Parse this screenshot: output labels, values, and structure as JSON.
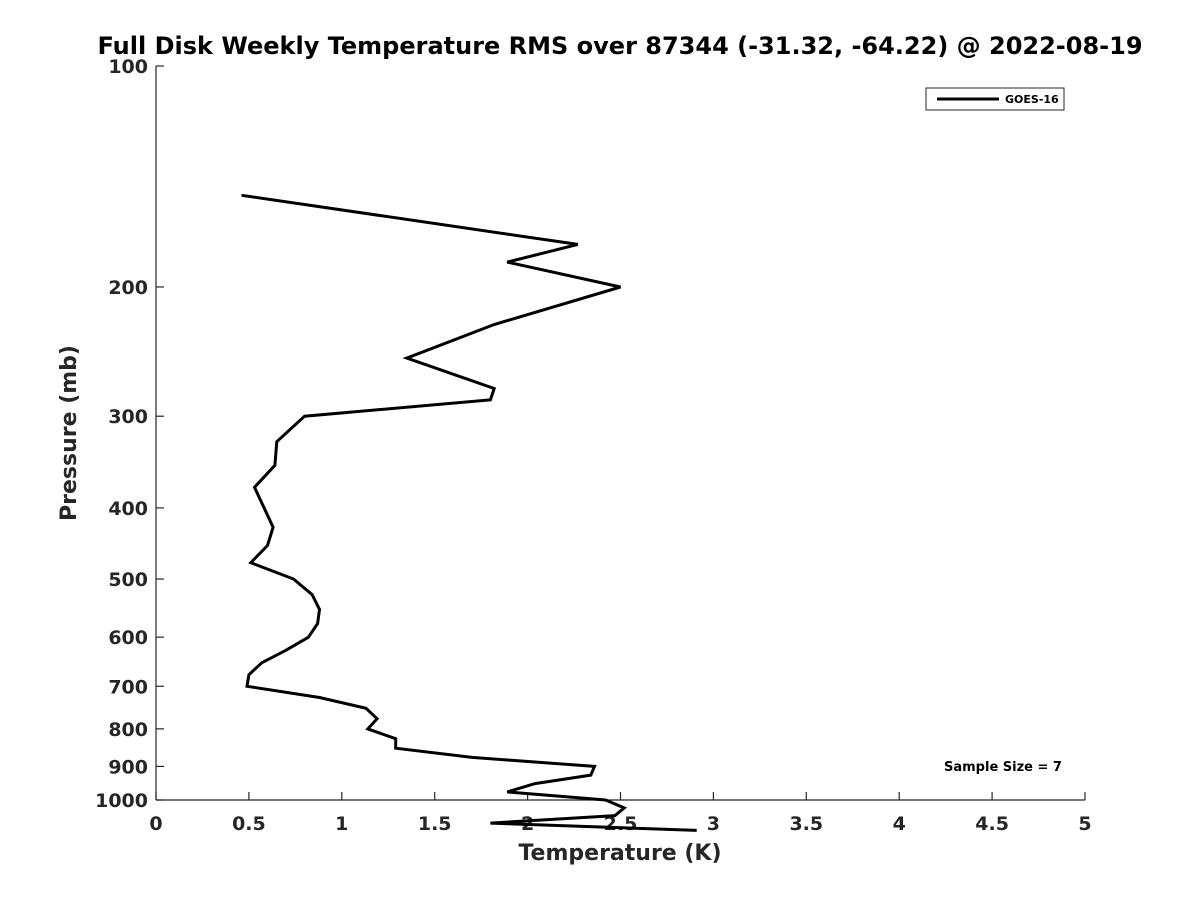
{
  "chart_data": {
    "type": "line",
    "title": "Full Disk Weekly Temperature RMS over 87344 (-31.32, -64.22) @ 2022-08-19",
    "xlabel": "Temperature (K)",
    "ylabel": "Pressure (mb)",
    "xlim": [
      0,
      5
    ],
    "ylim": [
      100,
      1000
    ],
    "y_scale": "log",
    "y_reversed": true,
    "x_ticks": [
      {
        "value": 0,
        "label": "0"
      },
      {
        "value": 0.5,
        "label": "0.5"
      },
      {
        "value": 1,
        "label": "1"
      },
      {
        "value": 1.5,
        "label": "1.5"
      },
      {
        "value": 2,
        "label": "2"
      },
      {
        "value": 2.5,
        "label": "2.5"
      },
      {
        "value": 3,
        "label": "3"
      },
      {
        "value": 3.5,
        "label": "3.5"
      },
      {
        "value": 4,
        "label": "4"
      },
      {
        "value": 4.5,
        "label": "4.5"
      },
      {
        "value": 5,
        "label": "5"
      }
    ],
    "y_ticks": [
      {
        "value": 100,
        "label": "100"
      },
      {
        "value": 200,
        "label": "200"
      },
      {
        "value": 300,
        "label": "300"
      },
      {
        "value": 400,
        "label": "400"
      },
      {
        "value": 500,
        "label": "500"
      },
      {
        "value": 600,
        "label": "600"
      },
      {
        "value": 700,
        "label": "700"
      },
      {
        "value": 800,
        "label": "800"
      },
      {
        "value": 900,
        "label": "900"
      },
      {
        "value": 1000,
        "label": "1000"
      }
    ],
    "grid": false,
    "legend_position": "top-right",
    "series": [
      {
        "name": "GOES-16",
        "color": "#000000",
        "points": [
          {
            "x": 0.46,
            "y": 150
          },
          {
            "x": 2.27,
            "y": 175
          },
          {
            "x": 1.89,
            "y": 185
          },
          {
            "x": 2.5,
            "y": 200
          },
          {
            "x": 1.82,
            "y": 225
          },
          {
            "x": 1.35,
            "y": 250
          },
          {
            "x": 1.82,
            "y": 275
          },
          {
            "x": 1.8,
            "y": 285
          },
          {
            "x": 0.8,
            "y": 300
          },
          {
            "x": 0.65,
            "y": 325
          },
          {
            "x": 0.64,
            "y": 350
          },
          {
            "x": 0.53,
            "y": 375
          },
          {
            "x": 0.63,
            "y": 425
          },
          {
            "x": 0.6,
            "y": 450
          },
          {
            "x": 0.51,
            "y": 475
          },
          {
            "x": 0.74,
            "y": 500
          },
          {
            "x": 0.84,
            "y": 525
          },
          {
            "x": 0.88,
            "y": 550
          },
          {
            "x": 0.87,
            "y": 575
          },
          {
            "x": 0.82,
            "y": 600
          },
          {
            "x": 0.7,
            "y": 625
          },
          {
            "x": 0.57,
            "y": 650
          },
          {
            "x": 0.5,
            "y": 675
          },
          {
            "x": 0.49,
            "y": 700
          },
          {
            "x": 0.88,
            "y": 725
          },
          {
            "x": 1.13,
            "y": 750
          },
          {
            "x": 1.19,
            "y": 775
          },
          {
            "x": 1.14,
            "y": 800
          },
          {
            "x": 1.29,
            "y": 825
          },
          {
            "x": 1.29,
            "y": 850
          },
          {
            "x": 1.7,
            "y": 875
          },
          {
            "x": 2.36,
            "y": 900
          },
          {
            "x": 2.34,
            "y": 925
          },
          {
            "x": 2.04,
            "y": 950
          },
          {
            "x": 1.89,
            "y": 975
          },
          {
            "x": 2.42,
            "y": 1000
          },
          {
            "x": 2.52,
            "y": 1025
          },
          {
            "x": 2.47,
            "y": 1050
          },
          {
            "x": 1.8,
            "y": 1075
          },
          {
            "x": 2.91,
            "y": 1100
          }
        ]
      }
    ],
    "annotation": "Sample Size = 7"
  }
}
